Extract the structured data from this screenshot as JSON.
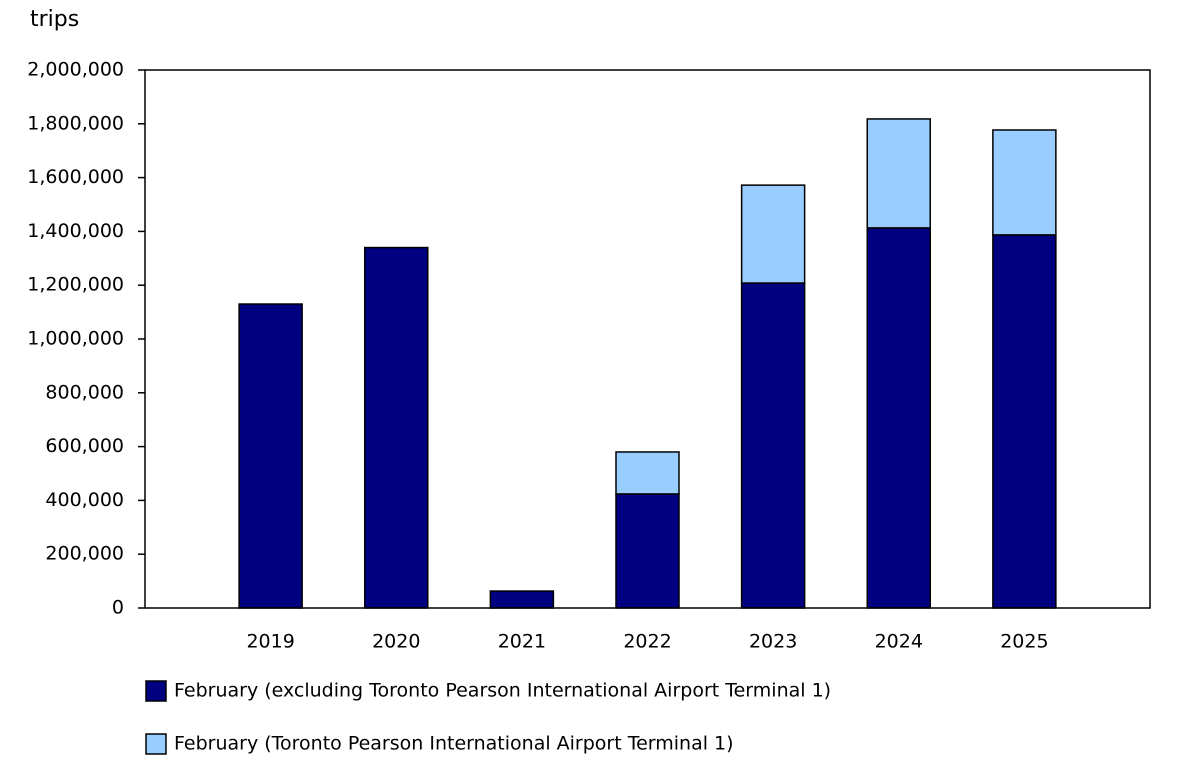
{
  "chart_data": {
    "type": "stacked-bar",
    "y_label": "trips",
    "categories": [
      "2019",
      "2020",
      "2021",
      "2022",
      "2023",
      "2024",
      "2025"
    ],
    "series": [
      {
        "name": "February (excluding Toronto Pearson International Airport Terminal 1)",
        "color": "#000080",
        "values": [
          1130000,
          1340000,
          63000,
          424000,
          1208000,
          1413000,
          1387000
        ]
      },
      {
        "name": "February (Toronto Pearson International Airport Terminal 1)",
        "color": "#99ccff",
        "values": [
          null,
          null,
          null,
          156000,
          364000,
          405000,
          390000
        ]
      }
    ],
    "ylim": [
      0,
      2000000
    ],
    "yticks": [
      0,
      {
        "value": 200000,
        "label": "200,000"
      },
      {
        "value": 400000,
        "label": "400,000"
      },
      {
        "value": 600000,
        "label": "600,000"
      },
      {
        "value": 800000,
        "label": "800,000"
      },
      {
        "value": 1000000,
        "label": "1,000,000"
      },
      {
        "value": 1200000,
        "label": "1,200,000"
      },
      {
        "value": 1400000,
        "label": "1,400,000"
      },
      {
        "value": 1600000,
        "label": "1,600,000"
      },
      {
        "value": 1800000,
        "label": "1,800,000"
      },
      {
        "value": 2000000,
        "label": "2,000,000"
      }
    ],
    "grid": false,
    "legend": "bottom"
  }
}
